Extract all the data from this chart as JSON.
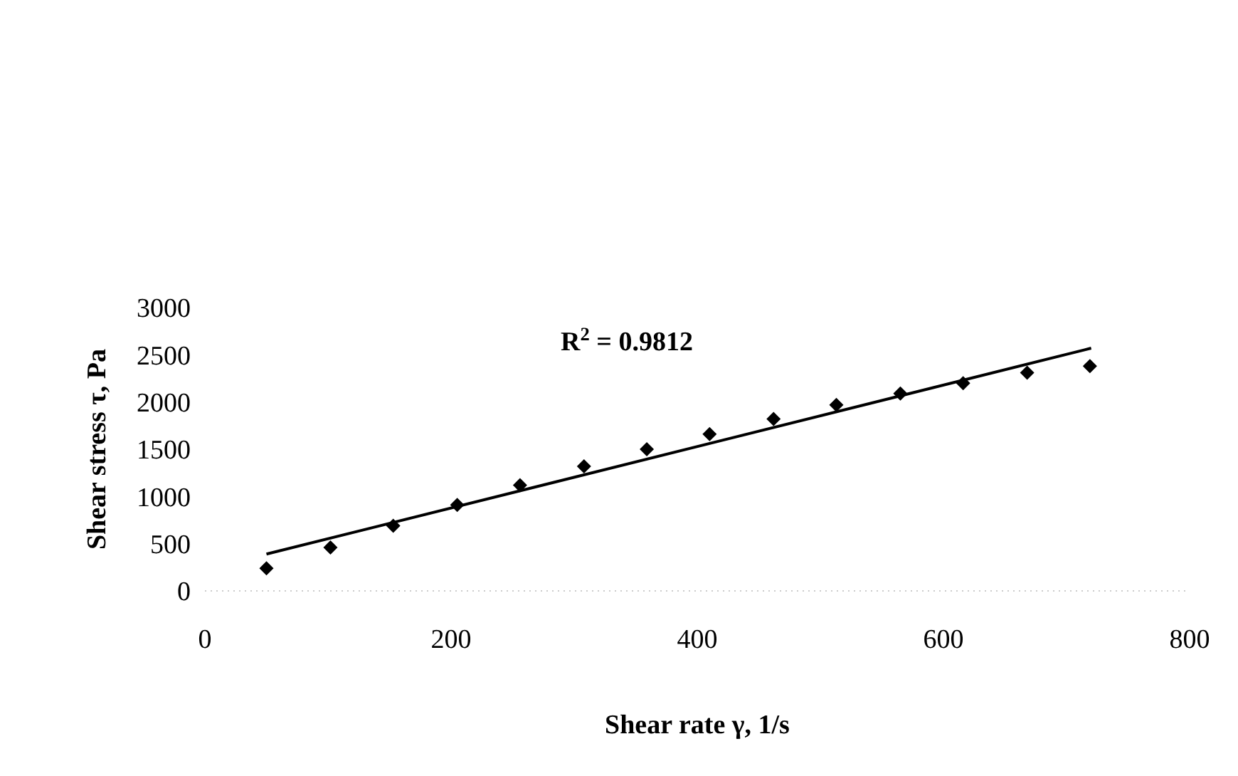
{
  "chart_data": {
    "type": "scatter",
    "xlabel": "Shear rate γ, 1/s",
    "ylabel": "Shear stress τ, Pa",
    "annotations": [
      "R$^{2}$ = 0.9812"
    ],
    "xlim": [
      0,
      800
    ],
    "xticks": [
      0,
      200,
      400,
      600,
      800
    ],
    "ylim": [
      0,
      3000
    ],
    "yticks": [
      0,
      500,
      1000,
      1500,
      2000,
      2500,
      3000
    ],
    "marker": "diamond",
    "series": [
      {
        "color": "#000000",
        "x": [
          50,
          102,
          153,
          205,
          256,
          308,
          359,
          410,
          462,
          513,
          565,
          616,
          668,
          719
        ],
        "values": [
          240,
          460,
          690,
          910,
          1120,
          1320,
          1500,
          1660,
          1820,
          1970,
          2090,
          2200,
          2310,
          2380
        ]
      },
      {
        "type": "line",
        "color": "#000000",
        "line_style": "solid",
        "marker": "none",
        "x": [
          50,
          720
        ],
        "values": [
          390,
          2570
        ]
      }
    ]
  }
}
